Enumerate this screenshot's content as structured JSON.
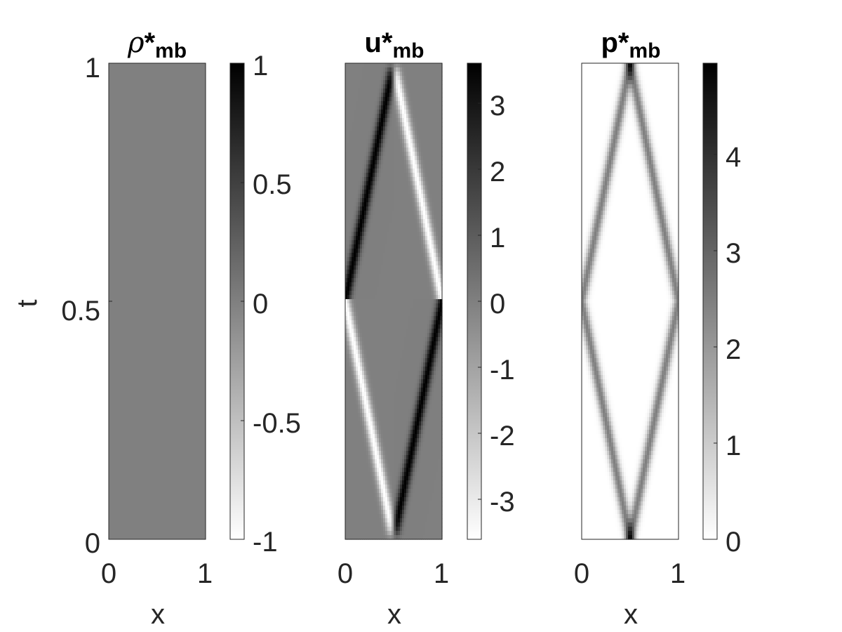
{
  "chart_data": [
    {
      "type": "heatmap",
      "title": {
        "base": "ρ",
        "star": "*",
        "sub": "mb"
      },
      "xlabel": "x",
      "ylabel": "t",
      "xlim": [
        0,
        1
      ],
      "ylim": [
        0,
        1
      ],
      "xticks": [
        0,
        1
      ],
      "xtick_labels": [
        "0",
        "1"
      ],
      "yticks": [
        0,
        0.5,
        1
      ],
      "ytick_labels": [
        "0",
        "0.5",
        "1"
      ],
      "colormap": "gray (high = black, low = white)",
      "color_range": [
        -1,
        1
      ],
      "colorbar_ticks": [
        -1,
        -0.5,
        0,
        0.5,
        1
      ],
      "colorbar_tick_labels": [
        "-1",
        "-0.5",
        "0",
        "0.5",
        "1"
      ],
      "field": "uniform value 0 over the whole domain"
    },
    {
      "type": "heatmap",
      "title": {
        "base": "u",
        "star": "*",
        "sub": "mb"
      },
      "xlabel": "x",
      "xlim": [
        0,
        1
      ],
      "ylim": [
        0,
        1
      ],
      "xticks": [
        0,
        1
      ],
      "xtick_labels": [
        "0",
        "1"
      ],
      "colormap": "gray (high = black, low = white)",
      "color_range": [
        -3.6,
        3.6
      ],
      "colorbar_ticks": [
        -3,
        -2,
        -1,
        0,
        1,
        2,
        3
      ],
      "colorbar_tick_labels": [
        "-3",
        "-2",
        "-1",
        "0",
        "1",
        "2",
        "3"
      ],
      "field": "antisymmetric pulses travelling from x=0.5 at t=0 to walls at t=0.5 and back to x=0.5 at t=1; peak |u| about 3.6"
    },
    {
      "type": "heatmap",
      "title": {
        "base": "p",
        "star": "*",
        "sub": "mb"
      },
      "xlabel": "x",
      "xlim": [
        0,
        1
      ],
      "ylim": [
        0,
        1
      ],
      "xticks": [
        0,
        1
      ],
      "xtick_labels": [
        "0",
        "1"
      ],
      "colormap": "gray (high = black, low = white)",
      "color_range": [
        0,
        4.95
      ],
      "colorbar_ticks": [
        0,
        1,
        2,
        3,
        4
      ],
      "colorbar_tick_labels": [
        "0",
        "1",
        "2",
        "3",
        "4"
      ],
      "field": "diamond pattern: pulse of p about 4.95 at x=0.5 (t=0, t=1) and at walls (t=0.5), about 2.5 along travelling branches"
    }
  ],
  "colors": {
    "axes": "#262626",
    "background": "#ffffff"
  }
}
